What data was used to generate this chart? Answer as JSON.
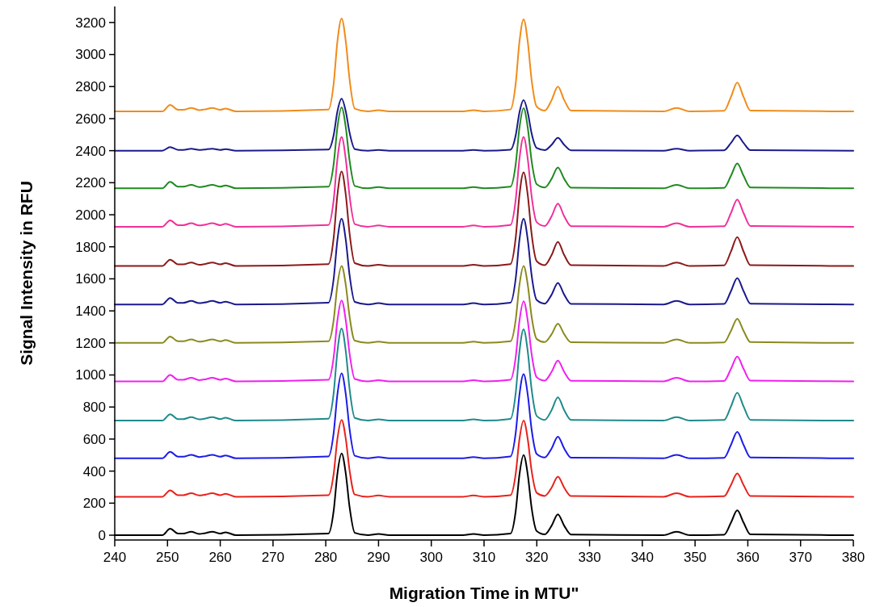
{
  "chart_data": {
    "type": "line",
    "xlabel": "Migration Time in MTU\"",
    "ylabel": "Signal Intensity in RFU",
    "xlim": [
      240,
      380
    ],
    "ylim": [
      -30,
      3300
    ],
    "xticks": [
      240,
      250,
      260,
      270,
      280,
      290,
      300,
      310,
      320,
      330,
      340,
      350,
      360,
      370,
      380
    ],
    "yticks": [
      0,
      200,
      400,
      600,
      800,
      1000,
      1200,
      1400,
      1600,
      1800,
      2000,
      2200,
      2400,
      2600,
      2800,
      3000,
      3200
    ],
    "x": [
      240,
      249,
      250.5,
      252,
      253,
      254.5,
      256,
      257,
      258.5,
      260,
      261,
      263,
      280.5,
      281.5,
      282.2,
      283,
      283.8,
      284.5,
      285.5,
      288,
      290,
      292,
      306,
      308,
      310,
      315,
      316,
      316.7,
      317.5,
      318.3,
      319,
      320,
      321.5,
      322.8,
      324,
      325.2,
      326.5,
      344,
      346.5,
      349,
      355.5,
      356.8,
      358,
      359.2,
      360.5,
      380
    ],
    "series": [
      {
        "color": "#000000",
        "values": [
          0,
          0,
          40,
          10,
          10,
          22,
          8,
          12,
          22,
          10,
          18,
          0,
          10,
          153,
          383,
          510,
          383,
          179,
          15,
          0,
          8,
          0,
          0,
          8,
          0,
          10,
          150,
          375,
          500,
          375,
          175,
          25,
          5,
          59,
          130,
          59,
          4,
          0,
          22,
          0,
          3,
          78,
          155,
          78,
          5,
          0
        ]
      },
      {
        "color": "#e8221c",
        "values": [
          240,
          240,
          280,
          250,
          250,
          262,
          248,
          252,
          262,
          250,
          258,
          240,
          250,
          384,
          600,
          720,
          600,
          408,
          254,
          240,
          248,
          240,
          240,
          248,
          240,
          250,
          383,
          596,
          715,
          596,
          406,
          264,
          245,
          296,
          365,
          296,
          244,
          240,
          262,
          240,
          243,
          313,
          385,
          313,
          244,
          240
        ]
      },
      {
        "color": "#1c1ce8",
        "values": [
          480,
          480,
          520,
          490,
          490,
          502,
          488,
          492,
          502,
          490,
          498,
          480,
          491,
          639,
          878,
          1010,
          878,
          666,
          496,
          480,
          488,
          480,
          480,
          488,
          480,
          491,
          638,
          874,
          1005,
          874,
          664,
          506,
          485,
          541,
          615,
          541,
          484,
          480,
          502,
          480,
          483,
          563,
          645,
          563,
          485,
          480
        ]
      },
      {
        "color": "#1f8a8a",
        "values": [
          715,
          715,
          755,
          725,
          725,
          737,
          723,
          727,
          737,
          725,
          733,
          715,
          727,
          888,
          1146,
          1290,
          1146,
          916,
          732,
          715,
          723,
          715,
          715,
          723,
          715,
          726,
          886,
          1143,
          1285,
          1143,
          915,
          744,
          720,
          780,
          860,
          780,
          719,
          715,
          737,
          715,
          719,
          803,
          890,
          803,
          720,
          715
        ]
      },
      {
        "color": "#f020f0",
        "values": [
          960,
          960,
          1000,
          970,
          970,
          982,
          968,
          972,
          982,
          970,
          978,
          960,
          970,
          1112,
          1339,
          1465,
          1339,
          1137,
          975,
          960,
          968,
          960,
          960,
          968,
          960,
          970,
          1110,
          1335,
          1460,
          1335,
          1135,
          985,
          965,
          1019,
          1090,
          1019,
          964,
          960,
          982,
          960,
          963,
          1038,
          1115,
          1038,
          965,
          960
        ]
      },
      {
        "color": "#8a8a1f",
        "values": [
          1200,
          1200,
          1240,
          1210,
          1210,
          1222,
          1208,
          1212,
          1222,
          1210,
          1218,
          1200,
          1210,
          1344,
          1560,
          1680,
          1560,
          1368,
          1214,
          1200,
          1208,
          1200,
          1200,
          1208,
          1200,
          1210,
          1344,
          1560,
          1680,
          1560,
          1368,
          1224,
          1205,
          1254,
          1320,
          1254,
          1204,
          1200,
          1222,
          1200,
          1203,
          1275,
          1350,
          1275,
          1205,
          1200
        ]
      },
      {
        "color": "#1a1a8c",
        "values": [
          1440,
          1440,
          1480,
          1450,
          1450,
          1462,
          1448,
          1452,
          1462,
          1450,
          1458,
          1440,
          1451,
          1601,
          1841,
          1975,
          1841,
          1627,
          1456,
          1440,
          1448,
          1440,
          1440,
          1448,
          1440,
          1451,
          1601,
          1841,
          1975,
          1841,
          1627,
          1467,
          1445,
          1501,
          1575,
          1501,
          1444,
          1440,
          1462,
          1440,
          1443,
          1523,
          1605,
          1523,
          1445,
          1440
        ]
      },
      {
        "color": "#8b1a1a",
        "values": [
          1680,
          1680,
          1720,
          1690,
          1690,
          1702,
          1688,
          1692,
          1702,
          1690,
          1698,
          1680,
          1692,
          1857,
          2123,
          2270,
          2123,
          1887,
          1698,
          1680,
          1688,
          1680,
          1680,
          1688,
          1680,
          1692,
          1856,
          2119,
          2265,
          2119,
          1885,
          1709,
          1685,
          1748,
          1830,
          1748,
          1685,
          1680,
          1702,
          1680,
          1684,
          1770,
          1860,
          1770,
          1685,
          1680
        ]
      },
      {
        "color": "#f0309a",
        "values": [
          1925,
          1925,
          1965,
          1935,
          1935,
          1947,
          1933,
          1937,
          1947,
          1935,
          1943,
          1925,
          1936,
          2093,
          2345,
          2485,
          2345,
          2121,
          1942,
          1925,
          1933,
          1925,
          1925,
          1933,
          1925,
          1936,
          2093,
          2345,
          2485,
          2345,
          2121,
          1953,
          1930,
          1990,
          2070,
          1990,
          1929,
          1925,
          1947,
          1925,
          1928,
          2010,
          2095,
          2010,
          1930,
          1925
        ]
      },
      {
        "color": "#1f8a1f",
        "values": [
          2165,
          2165,
          2205,
          2175,
          2175,
          2187,
          2173,
          2177,
          2187,
          2175,
          2183,
          2165,
          2175,
          2317,
          2544,
          2670,
          2544,
          2342,
          2180,
          2165,
          2173,
          2165,
          2165,
          2173,
          2165,
          2175,
          2315,
          2540,
          2665,
          2540,
          2340,
          2190,
          2170,
          2224,
          2295,
          2224,
          2169,
          2165,
          2187,
          2165,
          2168,
          2243,
          2320,
          2243,
          2170,
          2165
        ]
      },
      {
        "color": "#1a1a8c",
        "values": [
          2400,
          2400,
          2422,
          2405,
          2405,
          2412,
          2404,
          2407,
          2412,
          2405,
          2410,
          2400,
          2407,
          2498,
          2644,
          2725,
          2644,
          2514,
          2410,
          2400,
          2404,
          2400,
          2400,
          2404,
          2400,
          2406,
          2495,
          2636,
          2715,
          2636,
          2510,
          2416,
          2403,
          2436,
          2480,
          2436,
          2402,
          2400,
          2412,
          2400,
          2402,
          2448,
          2495,
          2448,
          2403,
          2400
        ]
      },
      {
        "color": "#f08c1a",
        "values": [
          2645,
          2645,
          2685,
          2655,
          2655,
          2667,
          2653,
          2657,
          2667,
          2655,
          2663,
          2645,
          2657,
          2819,
          3080,
          3225,
          3080,
          2848,
          2662,
          2645,
          2653,
          2645,
          2645,
          2653,
          2645,
          2657,
          2818,
          3076,
          3220,
          3076,
          2846,
          2674,
          2650,
          2715,
          2800,
          2715,
          2650,
          2645,
          2667,
          2645,
          2649,
          2735,
          2825,
          2735,
          2650,
          2645
        ]
      }
    ]
  }
}
